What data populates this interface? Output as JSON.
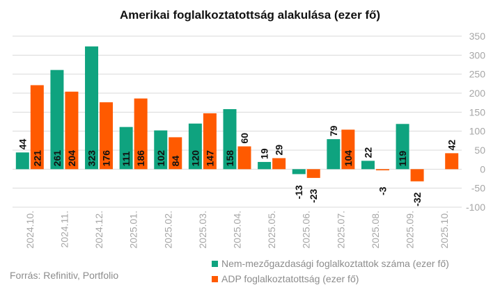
{
  "chart_data": {
    "type": "bar",
    "title": "Amerikai foglalkoztatottság alakulása (ezer fő)",
    "categories": [
      "2024.10.",
      "2024.11.",
      "2024.12.",
      "2025.01.",
      "2025.02.",
      "2025.03.",
      "2025.04.",
      "2025.05.",
      "2025.06.",
      "2025.07.",
      "2025.08.",
      "2025.09.",
      "2025.10."
    ],
    "series": [
      {
        "name": "Nem-mezőgazdasági foglalkoztattok száma (ezer fő)",
        "color": "#0fa37f",
        "values": [
          44,
          261,
          323,
          111,
          102,
          120,
          158,
          19,
          -13,
          79,
          22,
          119,
          null
        ]
      },
      {
        "name": "ADP foglalkoztatottság (ezer fő)",
        "color": "#ff5a00",
        "values": [
          221,
          204,
          176,
          186,
          84,
          147,
          60,
          29,
          -23,
          104,
          -3,
          -32,
          42
        ]
      }
    ],
    "ylim": [
      -100,
      350
    ],
    "yticks": [
      -100,
      -50,
      0,
      50,
      100,
      150,
      200,
      250,
      300,
      350
    ],
    "y_axis_side": "right",
    "grid": true,
    "legend_position": "bottom-right",
    "xlabel": "",
    "ylabel": ""
  },
  "source": "Forrás: Refinitiv, Portfolio"
}
